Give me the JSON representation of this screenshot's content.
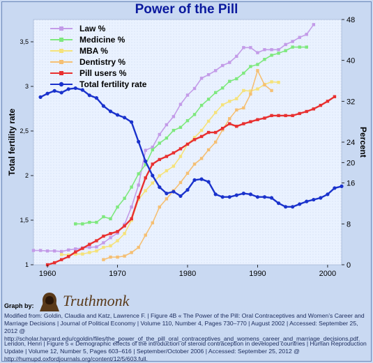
{
  "chart_data": {
    "type": "line",
    "title": "Power of the Pill",
    "ylabel_left": "Total fertility rate",
    "ylabel_right": "Percent",
    "x_ticks": [
      "1960",
      "1970",
      "1980",
      "1990",
      "2000"
    ],
    "y_left_ticks": [
      "1",
      "1,5",
      "2",
      "2,5",
      "3",
      "3,5"
    ],
    "y_right_ticks": [
      "0",
      "8",
      "16",
      "20",
      "24",
      "32",
      "40",
      "48"
    ],
    "xlim": [
      1958,
      2002
    ],
    "y_left_lim": [
      1,
      3.75
    ],
    "y_right_lim": [
      0,
      48
    ],
    "legend_position": "top-left",
    "series": [
      {
        "name": "Law %",
        "axis": "right",
        "color": "#c39be8",
        "points": [
          [
            1958,
            2.8
          ],
          [
            1959,
            2.8
          ],
          [
            1960,
            2.7
          ],
          [
            1961,
            2.7
          ],
          [
            1962,
            2.6
          ],
          [
            1963,
            2.9
          ],
          [
            1964,
            3.1
          ],
          [
            1965,
            3.3
          ],
          [
            1966,
            3.4
          ],
          [
            1967,
            3.5
          ],
          [
            1968,
            4.3
          ],
          [
            1969,
            5.3
          ],
          [
            1970,
            6.2
          ],
          [
            1971,
            7.9
          ],
          [
            1972,
            11.3
          ],
          [
            1973,
            15.6
          ],
          [
            1974,
            22.4
          ],
          [
            1975,
            23.0
          ],
          [
            1976,
            25.5
          ],
          [
            1977,
            27.4
          ],
          [
            1978,
            29.0
          ],
          [
            1979,
            31.4
          ],
          [
            1980,
            33.2
          ],
          [
            1981,
            34.5
          ],
          [
            1982,
            36.5
          ],
          [
            1983,
            37.2
          ],
          [
            1984,
            38.0
          ],
          [
            1985,
            39.0
          ],
          [
            1986,
            39.6
          ],
          [
            1987,
            40.8
          ],
          [
            1988,
            42.5
          ],
          [
            1989,
            42.5
          ],
          [
            1990,
            41.5
          ],
          [
            1991,
            42.1
          ],
          [
            1992,
            42.1
          ],
          [
            1993,
            42.1
          ],
          [
            1994,
            43.1
          ],
          [
            1995,
            43.7
          ],
          [
            1996,
            44.5
          ],
          [
            1997,
            45.1
          ],
          [
            1998,
            47.0
          ]
        ]
      },
      {
        "name": "Medicine %",
        "axis": "right",
        "color": "#7ee87e",
        "points": [
          [
            1964,
            8.0
          ],
          [
            1965,
            8.0
          ],
          [
            1966,
            8.3
          ],
          [
            1967,
            8.3
          ],
          [
            1968,
            9.4
          ],
          [
            1969,
            9.0
          ],
          [
            1970,
            11.3
          ],
          [
            1971,
            13.0
          ],
          [
            1972,
            15.2
          ],
          [
            1973,
            17.8
          ],
          [
            1974,
            19.6
          ],
          [
            1975,
            22.5
          ],
          [
            1976,
            23.8
          ],
          [
            1977,
            24.8
          ],
          [
            1978,
            26.3
          ],
          [
            1979,
            26.9
          ],
          [
            1980,
            28.2
          ],
          [
            1981,
            29.4
          ],
          [
            1982,
            31.2
          ],
          [
            1983,
            32.4
          ],
          [
            1984,
            33.7
          ],
          [
            1985,
            34.6
          ],
          [
            1986,
            35.9
          ],
          [
            1987,
            36.4
          ],
          [
            1988,
            37.5
          ],
          [
            1989,
            38.8
          ],
          [
            1990,
            39.2
          ],
          [
            1991,
            40.2
          ],
          [
            1992,
            41.0
          ],
          [
            1993,
            41.4
          ],
          [
            1994,
            41.9
          ],
          [
            1995,
            42.6
          ],
          [
            1996,
            42.6
          ],
          [
            1997,
            42.6
          ]
        ]
      },
      {
        "name": "MBA %",
        "axis": "right",
        "color": "#f5e27a",
        "points": [
          [
            1962,
            2.0
          ],
          [
            1963,
            1.9
          ],
          [
            1964,
            2.1
          ],
          [
            1965,
            2.1
          ],
          [
            1966,
            2.4
          ],
          [
            1967,
            2.7
          ],
          [
            1968,
            3.4
          ],
          [
            1969,
            3.7
          ],
          [
            1970,
            4.7
          ],
          [
            1971,
            6.1
          ],
          [
            1972,
            8.7
          ],
          [
            1973,
            12.8
          ],
          [
            1974,
            14.5
          ],
          [
            1975,
            16.0
          ],
          [
            1976,
            17.4
          ],
          [
            1977,
            18.4
          ],
          [
            1978,
            19.3
          ],
          [
            1979,
            21.2
          ],
          [
            1980,
            23.6
          ],
          [
            1981,
            24.9
          ],
          [
            1982,
            26.3
          ],
          [
            1983,
            28.1
          ],
          [
            1984,
            29.8
          ],
          [
            1985,
            31.3
          ],
          [
            1986,
            32.0
          ],
          [
            1987,
            32.5
          ],
          [
            1988,
            34.1
          ],
          [
            1989,
            34.0
          ],
          [
            1990,
            34.4
          ],
          [
            1991,
            35.3
          ],
          [
            1992,
            35.8
          ],
          [
            1993,
            35.7
          ]
        ]
      },
      {
        "name": "Dentistry %",
        "axis": "right",
        "color": "#f5bf73",
        "points": [
          [
            1968,
            1.0
          ],
          [
            1969,
            1.5
          ],
          [
            1970,
            1.5
          ],
          [
            1971,
            1.7
          ],
          [
            1972,
            2.4
          ],
          [
            1973,
            3.4
          ],
          [
            1974,
            5.8
          ],
          [
            1975,
            8.2
          ],
          [
            1976,
            11.3
          ],
          [
            1977,
            12.9
          ],
          [
            1978,
            14.5
          ],
          [
            1979,
            16.1
          ],
          [
            1980,
            17.9
          ],
          [
            1981,
            19.7
          ],
          [
            1982,
            20.8
          ],
          [
            1983,
            22.5
          ],
          [
            1984,
            24.0
          ],
          [
            1985,
            26.4
          ],
          [
            1986,
            28.6
          ],
          [
            1987,
            30.3
          ],
          [
            1988,
            30.7
          ],
          [
            1989,
            33.4
          ],
          [
            1990,
            38.0
          ],
          [
            1991,
            35.2
          ],
          [
            1992,
            34.1
          ]
        ]
      },
      {
        "name": "Pill users %",
        "axis": "right",
        "color": "#e83030",
        "points": [
          [
            1960,
            0
          ],
          [
            1961,
            0.4
          ],
          [
            1962,
            1.0
          ],
          [
            1963,
            1.6
          ],
          [
            1964,
            2.5
          ],
          [
            1965,
            3.2
          ],
          [
            1966,
            4.0
          ],
          [
            1967,
            4.7
          ],
          [
            1968,
            5.6
          ],
          [
            1969,
            6.1
          ],
          [
            1970,
            6.5
          ],
          [
            1971,
            7.6
          ],
          [
            1972,
            9.0
          ],
          [
            1973,
            13.2
          ],
          [
            1974,
            17.0
          ],
          [
            1975,
            19.7
          ],
          [
            1976,
            20.6
          ],
          [
            1977,
            21.2
          ],
          [
            1978,
            21.9
          ],
          [
            1979,
            22.7
          ],
          [
            1980,
            23.6
          ],
          [
            1981,
            24.5
          ],
          [
            1982,
            25.1
          ],
          [
            1983,
            25.9
          ],
          [
            1984,
            25.9
          ],
          [
            1985,
            26.7
          ],
          [
            1986,
            27.6
          ],
          [
            1987,
            27.1
          ],
          [
            1988,
            27.6
          ],
          [
            1989,
            28.0
          ],
          [
            1990,
            28.4
          ],
          [
            1991,
            28.7
          ],
          [
            1992,
            29.2
          ],
          [
            1993,
            29.2
          ],
          [
            1994,
            29.2
          ],
          [
            1995,
            29.2
          ],
          [
            1996,
            29.6
          ],
          [
            1997,
            30.0
          ],
          [
            1998,
            30.5
          ],
          [
            1999,
            31.2
          ],
          [
            2000,
            32.0
          ],
          [
            2001,
            32.9
          ]
        ]
      },
      {
        "name": "Total fertility rate",
        "axis": "left",
        "color": "#1a32cc",
        "points": [
          [
            1959,
            2.88
          ],
          [
            1960,
            2.92
          ],
          [
            1961,
            2.95
          ],
          [
            1962,
            2.93
          ],
          [
            1963,
            2.97
          ],
          [
            1964,
            2.98
          ],
          [
            1965,
            2.96
          ],
          [
            1966,
            2.9
          ],
          [
            1967,
            2.87
          ],
          [
            1968,
            2.78
          ],
          [
            1969,
            2.72
          ],
          [
            1970,
            2.68
          ],
          [
            1971,
            2.65
          ],
          [
            1972,
            2.6
          ],
          [
            1973,
            2.38
          ],
          [
            1974,
            2.16
          ],
          [
            1975,
            2.0
          ],
          [
            1976,
            1.87
          ],
          [
            1977,
            1.8
          ],
          [
            1978,
            1.82
          ],
          [
            1979,
            1.77
          ],
          [
            1980,
            1.84
          ],
          [
            1981,
            1.95
          ],
          [
            1982,
            1.96
          ],
          [
            1983,
            1.93
          ],
          [
            1984,
            1.79
          ],
          [
            1985,
            1.76
          ],
          [
            1986,
            1.76
          ],
          [
            1987,
            1.78
          ],
          [
            1988,
            1.8
          ],
          [
            1989,
            1.79
          ],
          [
            1990,
            1.76
          ],
          [
            1991,
            1.76
          ],
          [
            1992,
            1.75
          ],
          [
            1993,
            1.69
          ],
          [
            1994,
            1.65
          ],
          [
            1995,
            1.65
          ],
          [
            1996,
            1.68
          ],
          [
            1997,
            1.71
          ],
          [
            1998,
            1.73
          ],
          [
            1999,
            1.75
          ],
          [
            2000,
            1.79
          ],
          [
            2001,
            1.86
          ],
          [
            2002,
            1.88
          ]
        ]
      }
    ]
  },
  "footer": {
    "graph_by": "Graph by:",
    "brand": "Truthmonk",
    "source1": "Modified from: Goldin, Claudia and  Katz, Lawrence F. | Figure 4B « The Power of the Pill: Oral Contraceptives and Women’s Career and Marriage Decisions | Journal of Political Economy | Volume 110, Number 4, Pages 730–770 | August 2002 | Accessed: September 25, 2012 @ http://scholar.harvard.edu/cgoldin/files/the_power_of_the_pill_oral_contraceptives_and_womens_career_and_marriage_decisions.pdf.",
    "source2": "Leridon, Henri | Figure 5 « Demographic effects of the introduction of steroid contraception in developed countries | Human Reproduction Update | Volume 12, Number 5, Pages 603–616 |  September/October 2006 | Accessed: September 25, 2012 @ http://humupd.oxfordjournals.org/content/12/5/603.full."
  },
  "colors": {
    "plot_bg": "#eaf2ff",
    "page_bg": "#c9d9f2",
    "title": "#0b1a9e"
  }
}
